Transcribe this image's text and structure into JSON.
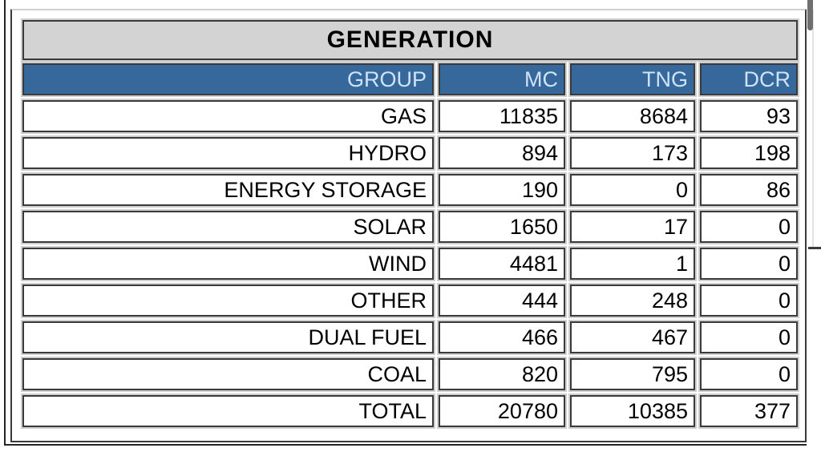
{
  "title": "GENERATION",
  "columns": {
    "group": "GROUP",
    "mc": "MC",
    "tng": "TNG",
    "dcr": "DCR"
  },
  "rows": [
    {
      "group": "GAS",
      "mc": "11835",
      "tng": "8684",
      "dcr": "93"
    },
    {
      "group": "HYDRO",
      "mc": "894",
      "tng": "173",
      "dcr": "198"
    },
    {
      "group": "ENERGY STORAGE",
      "mc": "190",
      "tng": "0",
      "dcr": "86"
    },
    {
      "group": "SOLAR",
      "mc": "1650",
      "tng": "17",
      "dcr": "0"
    },
    {
      "group": "WIND",
      "mc": "4481",
      "tng": "1",
      "dcr": "0"
    },
    {
      "group": "OTHER",
      "mc": "444",
      "tng": "248",
      "dcr": "0"
    },
    {
      "group": "DUAL FUEL",
      "mc": "466",
      "tng": "467",
      "dcr": "0"
    },
    {
      "group": "COAL",
      "mc": "820",
      "tng": "795",
      "dcr": "0"
    }
  ],
  "total": {
    "group": "TOTAL",
    "mc": "20780",
    "tng": "10385",
    "dcr": "377"
  },
  "colors": {
    "header_bg": "#36689B",
    "header_text": "#CFE3F8",
    "title_bg": "#D3D3D3",
    "border_dark": "#3A3A3A",
    "border_light": "#CFCFCF"
  }
}
